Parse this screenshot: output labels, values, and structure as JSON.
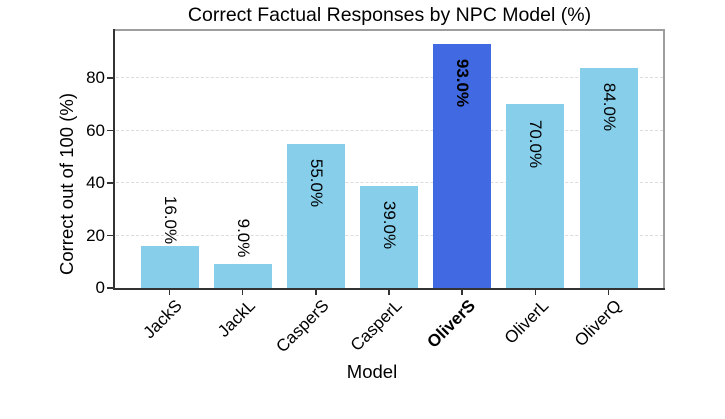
{
  "chart_data": {
    "type": "bar",
    "title": "Correct Factual Responses by NPC Model (%)",
    "xlabel": "Model",
    "ylabel": "Correct out of 100 (%)",
    "categories": [
      "JackS",
      "JackL",
      "CasperS",
      "CasperL",
      "OliverS",
      "OliverL",
      "OliverQ"
    ],
    "values": [
      16.0,
      9.0,
      55.0,
      39.0,
      93.0,
      70.0,
      84.0
    ],
    "bar_labels": [
      "16.0%",
      "9.0%",
      "55.0%",
      "39.0%",
      "93.0%",
      "70.0%",
      "84.0%"
    ],
    "highlight_index": 4,
    "highlight_category": "OliverS",
    "yticks": [
      0,
      20,
      40,
      60,
      80
    ],
    "ytick_labels": [
      "0",
      "20",
      "40",
      "60",
      "80"
    ],
    "ylim": [
      0,
      98.3
    ],
    "grid": "horizontal-dashed",
    "legend": null,
    "colors": {
      "bar": "#87CEEB",
      "highlight_bar": "#4169E1",
      "grid": "#dcdcdc",
      "spine_dark": "#333333",
      "spine_light": "#9e9e9e",
      "text": "#000000",
      "background": "#ffffff"
    }
  }
}
